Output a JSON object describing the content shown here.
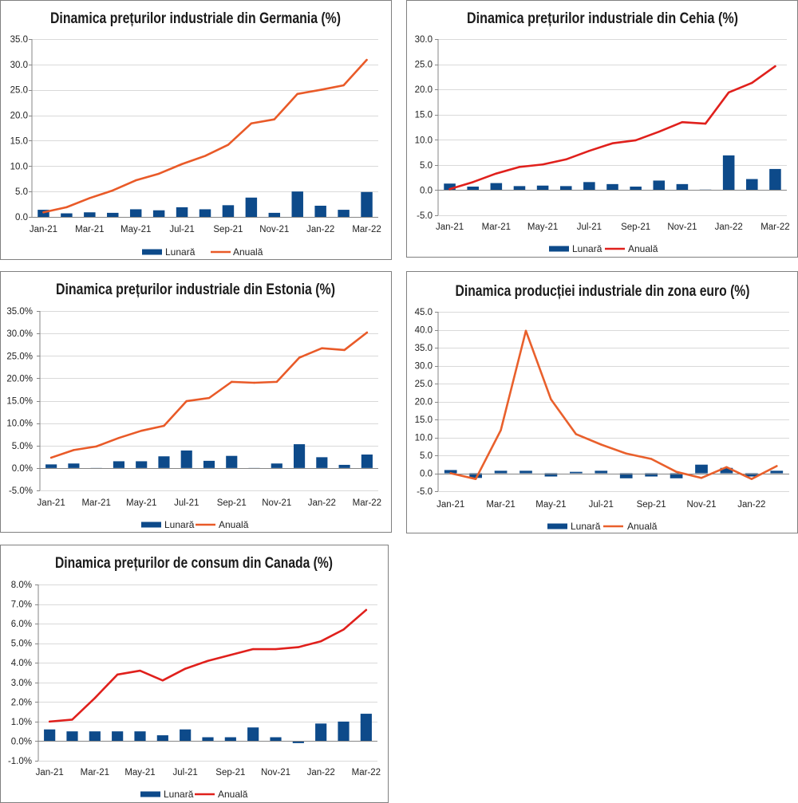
{
  "chart_data": [
    {
      "type": "bar",
      "title": "Dinamica prețurilor industriale din Germania (%)",
      "ylim": [
        0,
        35
      ],
      "grid": true,
      "legend_position": "bottom",
      "ytick_labels": [
        "0.0",
        "5.0",
        "10.0",
        "15.0",
        "20.0",
        "25.0",
        "30.0",
        "35.0"
      ],
      "xtick_labels": [
        "Jan-21",
        "Mar-21",
        "May-21",
        "Jul-21",
        "Sep-21",
        "Nov-21",
        "Jan-22",
        "Mar-22"
      ],
      "series": [
        {
          "name": "Lunară",
          "type": "bar",
          "color": "#0d4a8a",
          "values": [
            1.4,
            0.7,
            0.9,
            0.8,
            1.5,
            1.3,
            1.9,
            1.5,
            2.3,
            3.8,
            0.8,
            5.0,
            2.2,
            1.4,
            4.9
          ]
        },
        {
          "name": "Anuală",
          "type": "line",
          "color": "#e95a28",
          "values": [
            0.9,
            1.9,
            3.7,
            5.2,
            7.2,
            8.5,
            10.4,
            12.0,
            14.2,
            18.4,
            19.2,
            24.2,
            25.0,
            25.9,
            30.9
          ]
        }
      ]
    },
    {
      "type": "bar",
      "title": "Dinamica prețurilor industriale din Cehia (%)",
      "ylim": [
        -5,
        30
      ],
      "grid": true,
      "legend_position": "bottom",
      "ytick_labels": [
        "-5.0",
        "0.0",
        "5.0",
        "10.0",
        "15.0",
        "20.0",
        "25.0",
        "30.0"
      ],
      "xtick_labels": [
        "Jan-21",
        "Mar-21",
        "May-21",
        "Jul-21",
        "Sep-21",
        "Nov-21",
        "Jan-22",
        "Mar-22"
      ],
      "series": [
        {
          "name": "Lunară",
          "type": "bar",
          "color": "#0d4a8a",
          "values": [
            1.3,
            0.7,
            1.4,
            0.8,
            0.9,
            0.8,
            1.6,
            1.2,
            0.7,
            1.9,
            1.2,
            0.1,
            6.9,
            2.2,
            4.2
          ]
        },
        {
          "name": "Anuală",
          "type": "line",
          "color": "#e0201c",
          "values": [
            0.2,
            1.6,
            3.3,
            4.6,
            5.1,
            6.1,
            7.8,
            9.3,
            9.9,
            11.6,
            13.5,
            13.2,
            19.4,
            21.3,
            24.6
          ]
        }
      ]
    },
    {
      "type": "bar",
      "title": "Dinamica prețurilor industriale din Estonia (%)",
      "ylim": [
        -5,
        35
      ],
      "grid": true,
      "legend_position": "bottom",
      "ytick_labels": [
        "-5.0%",
        "0.0%",
        "5.0%",
        "10.0%",
        "15.0%",
        "20.0%",
        "25.0%",
        "30.0%",
        "35.0%"
      ],
      "xtick_labels": [
        "Jan-21",
        "Mar-21",
        "May-21",
        "Jul-21",
        "Sep-21",
        "Nov-21",
        "Jan-22",
        "Mar-22"
      ],
      "series": [
        {
          "name": "Lunară",
          "type": "bar",
          "color": "#0d4a8a",
          "values": [
            0.8,
            1.0,
            -0.2,
            1.5,
            1.5,
            2.6,
            3.9,
            1.6,
            2.7,
            -0.2,
            1.0,
            5.3,
            2.4,
            0.7,
            3.0
          ]
        },
        {
          "name": "Anuală",
          "type": "line",
          "color": "#e95a28",
          "values": [
            2.3,
            4.0,
            4.8,
            6.7,
            8.3,
            9.4,
            14.9,
            15.6,
            19.2,
            19.0,
            19.2,
            24.6,
            26.7,
            26.3,
            30.2
          ]
        }
      ]
    },
    {
      "type": "bar",
      "title": "Dinamica producției industriale din zona euro (%)",
      "ylim": [
        -5,
        45
      ],
      "grid": true,
      "legend_position": "bottom",
      "ytick_labels": [
        "-5.0",
        "0.0",
        "5.0",
        "10.0",
        "15.0",
        "20.0",
        "25.0",
        "30.0",
        "35.0",
        "40.0",
        "45.0"
      ],
      "xtick_labels": [
        "Jan-21",
        "Mar-21",
        "May-21",
        "Jul-21",
        "Sep-21",
        "Nov-21",
        "Jan-22"
      ],
      "series": [
        {
          "name": "Lunară",
          "type": "bar",
          "color": "#0d4a8a",
          "values": [
            0.9,
            -1.3,
            0.7,
            0.7,
            -0.9,
            0.4,
            0.7,
            -1.4,
            -0.9,
            -1.4,
            2.4,
            1.5,
            -0.9,
            0.7
          ]
        },
        {
          "name": "Anuală",
          "type": "line",
          "color": "#e9602c",
          "values": [
            0.0,
            -1.6,
            12.0,
            39.7,
            20.6,
            10.9,
            8.0,
            5.5,
            4.0,
            0.4,
            -1.3,
            1.7,
            -1.6,
            2.0
          ]
        }
      ]
    },
    {
      "type": "bar",
      "title": "Dinamica prețurilor de consum din Canada (%)",
      "ylim": [
        -1,
        8
      ],
      "grid": true,
      "legend_position": "bottom",
      "ytick_labels": [
        "-1.0%",
        "0.0%",
        "1.0%",
        "2.0%",
        "3.0%",
        "4.0%",
        "5.0%",
        "6.0%",
        "7.0%",
        "8.0%"
      ],
      "xtick_labels": [
        "Jan-21",
        "Mar-21",
        "May-21",
        "Jul-21",
        "Sep-21",
        "Nov-21",
        "Jan-22",
        "Mar-22"
      ],
      "series": [
        {
          "name": "Lunară",
          "type": "bar",
          "color": "#0d4a8a",
          "values": [
            0.6,
            0.5,
            0.5,
            0.5,
            0.5,
            0.3,
            0.6,
            0.2,
            0.2,
            0.7,
            0.2,
            -0.1,
            0.9,
            1.0,
            1.4
          ]
        },
        {
          "name": "Anuală",
          "type": "line",
          "color": "#e0201c",
          "values": [
            1.0,
            1.1,
            2.2,
            3.4,
            3.6,
            3.1,
            3.7,
            4.1,
            4.4,
            4.7,
            4.7,
            4.8,
            5.1,
            5.7,
            6.7
          ]
        }
      ]
    }
  ]
}
